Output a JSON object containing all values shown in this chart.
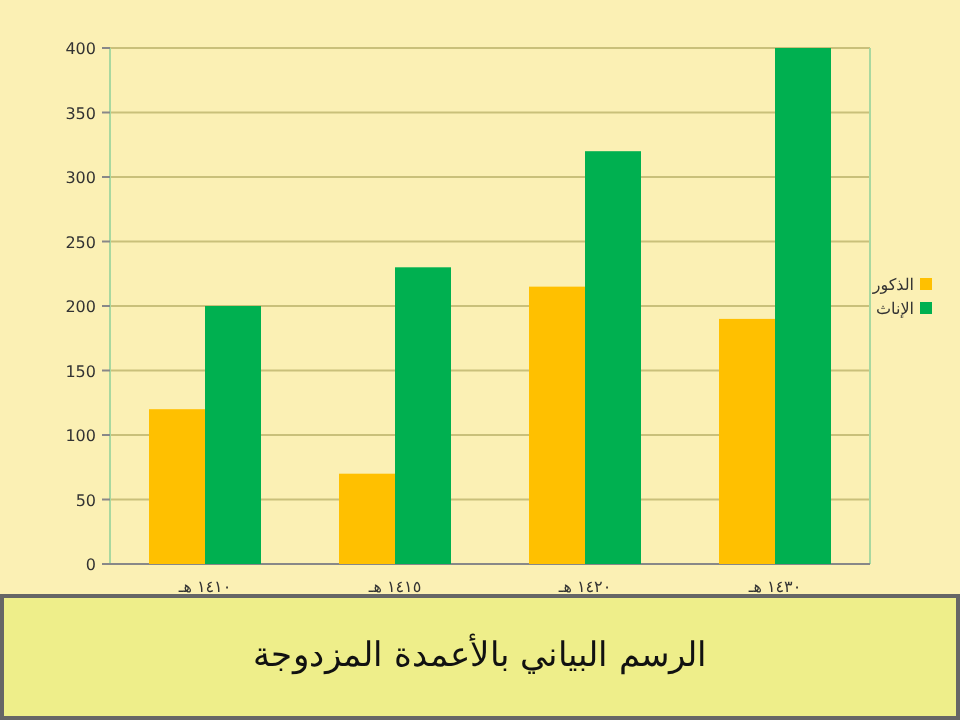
{
  "chart_data": {
    "type": "bar",
    "title": "الرسم البياني بالأعمدة المزدوجة",
    "categories": [
      "١٤١٠ هـ",
      "١٤١٥ هـ",
      "١٤٢٠ هـ",
      "١٤٣٠ هـ"
    ],
    "series": [
      {
        "name": "الذكور",
        "color": "#ffc000",
        "values": [
          120,
          70,
          215,
          190
        ]
      },
      {
        "name": "الإناث",
        "color": "#00b050",
        "values": [
          200,
          230,
          320,
          400
        ]
      }
    ],
    "ylim": [
      0,
      400
    ],
    "yticks": [
      0,
      50,
      100,
      150,
      200,
      250,
      300,
      350,
      400
    ],
    "grid": "y",
    "legend": "right"
  }
}
